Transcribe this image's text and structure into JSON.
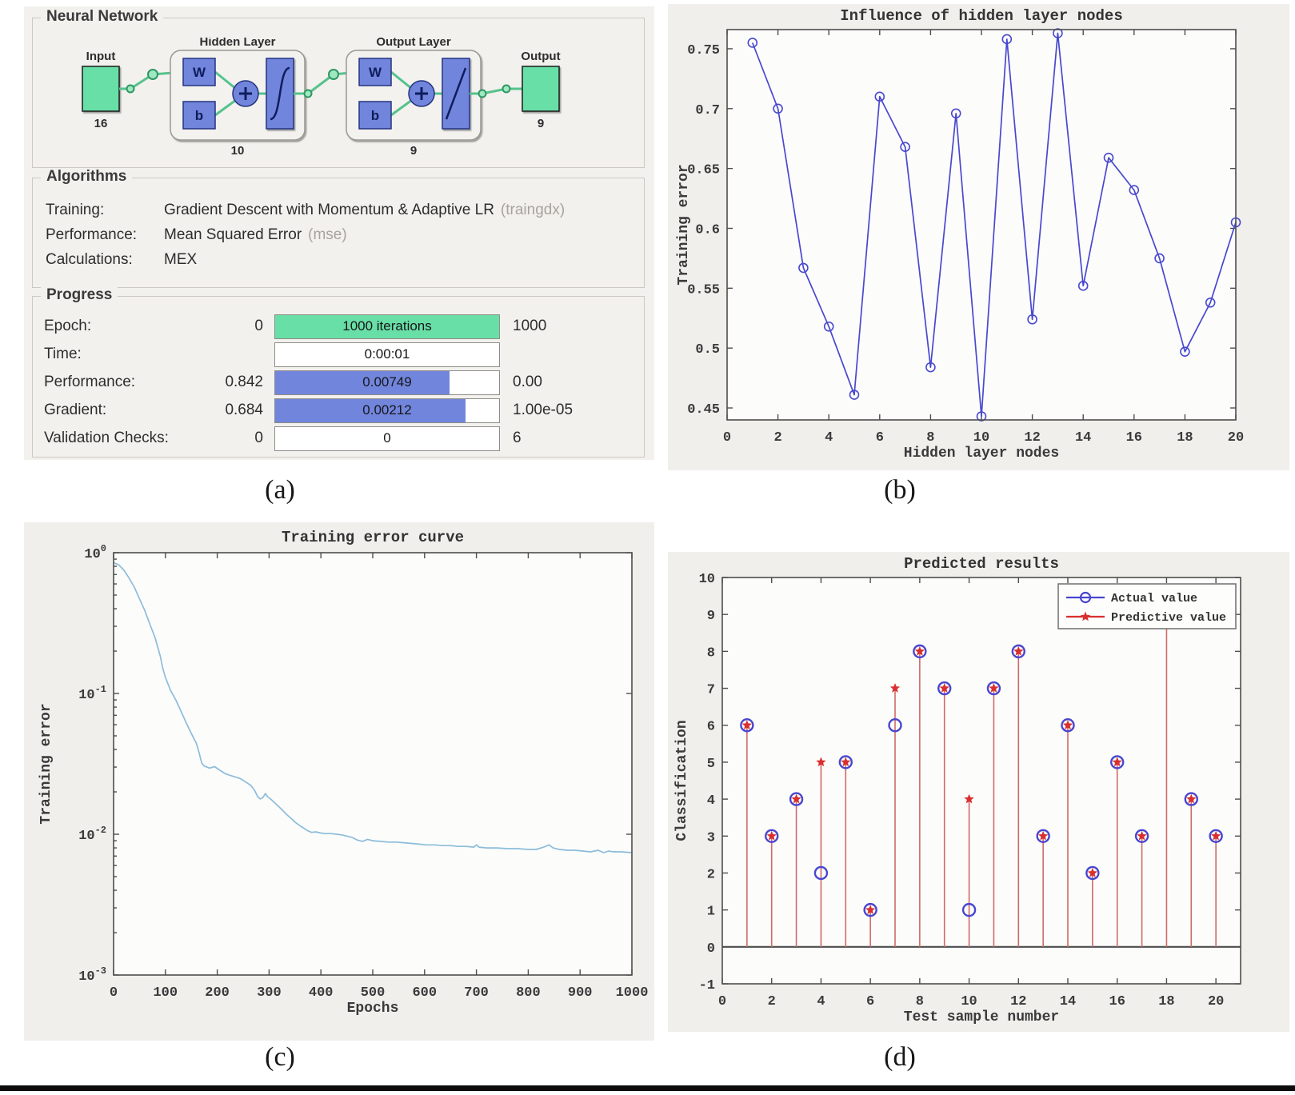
{
  "figure": {
    "captions": {
      "a": "(a)",
      "b": "(b)",
      "c": "(c)",
      "d": "(d)"
    }
  },
  "panel_a": {
    "neural_network": {
      "title": "Neural Network",
      "input_label": "Input",
      "input_size": "16",
      "hidden_layer_label": "Hidden Layer",
      "hidden_nodes": "10",
      "output_layer_label": "Output Layer",
      "output_nodes": "9",
      "weight_label": "W",
      "bias_label": "b",
      "output_label": "Output",
      "output_size": "9"
    },
    "algorithms": {
      "title": "Algorithms",
      "rows": [
        {
          "label": "Training:",
          "value": "Gradient Descent with Momentum & Adaptive LR",
          "code": "(traingdx)"
        },
        {
          "label": "Performance:",
          "value": "Mean Squared Error",
          "code": "(mse)"
        },
        {
          "label": "Calculations:",
          "value": "MEX",
          "code": ""
        }
      ]
    },
    "progress": {
      "title": "Progress",
      "rows": [
        {
          "label": "Epoch:",
          "left": "0",
          "bar_text": "1000 iterations",
          "bar_fill": 1.0,
          "bar_color": "#68dfa6",
          "right": "1000"
        },
        {
          "label": "Time:",
          "left": "",
          "bar_text": "0:00:01",
          "bar_fill": 0,
          "bar_color": "#ffffff",
          "right": ""
        },
        {
          "label": "Performance:",
          "left": "0.842",
          "bar_text": "0.00749",
          "bar_fill": 0.78,
          "bar_color": "#7185dc",
          "right": "0.00"
        },
        {
          "label": "Gradient:",
          "left": "0.684",
          "bar_text": "0.00212",
          "bar_fill": 0.85,
          "bar_color": "#7185dc",
          "right": "1.00e-05"
        },
        {
          "label": "Validation Checks:",
          "left": "0",
          "bar_text": "0",
          "bar_fill": 0,
          "bar_color": "#ffffff",
          "right": "6"
        }
      ]
    }
  },
  "chart_data": [
    {
      "id": "b",
      "type": "line",
      "title": "Influence of hidden layer nodes",
      "xlabel": "Hidden layer nodes",
      "ylabel": "Training error",
      "xlim": [
        0,
        20
      ],
      "ylim": [
        0.44,
        0.766
      ],
      "grid": false,
      "line_color": "#4848d0",
      "marker": "o",
      "xticks": [
        0,
        2,
        4,
        6,
        8,
        10,
        12,
        14,
        16,
        18,
        20
      ],
      "yticks": [
        {
          "v": 0.45,
          "label": "0.45"
        },
        {
          "v": 0.5,
          "label": "0.5"
        },
        {
          "v": 0.55,
          "label": "0.55"
        },
        {
          "v": 0.6,
          "label": "0.6"
        },
        {
          "v": 0.65,
          "label": "0.65"
        },
        {
          "v": 0.7,
          "label": "0.7"
        },
        {
          "v": 0.75,
          "label": "0.75"
        }
      ],
      "x": [
        1,
        2,
        3,
        4,
        5,
        6,
        7,
        8,
        9,
        10,
        11,
        12,
        13,
        14,
        15,
        16,
        17,
        18,
        19,
        20
      ],
      "y": [
        0.755,
        0.7,
        0.567,
        0.518,
        0.461,
        0.71,
        0.668,
        0.484,
        0.696,
        0.443,
        0.758,
        0.524,
        0.763,
        0.552,
        0.659,
        0.632,
        0.575,
        0.497,
        0.538,
        0.605
      ]
    },
    {
      "id": "c",
      "type": "line",
      "title": "Training error curve",
      "xlabel": "Epochs",
      "ylabel": "Training error",
      "yscale": "log",
      "xlim": [
        0,
        1000
      ],
      "ylim": [
        0.001,
        1
      ],
      "grid": false,
      "line_color": "#8cbcdb",
      "marker": "",
      "xticks": [
        0,
        100,
        200,
        300,
        400,
        500,
        600,
        700,
        800,
        900,
        1000
      ],
      "yticks": [
        {
          "v": 1,
          "base": "10",
          "exp": "0"
        },
        {
          "v": 0.1,
          "base": "10",
          "exp": "-1"
        },
        {
          "v": 0.01,
          "base": "10",
          "exp": "-2"
        },
        {
          "v": 0.001,
          "base": "10",
          "exp": "-3"
        }
      ],
      "x": [
        0,
        10,
        20,
        30,
        40,
        50,
        60,
        70,
        80,
        90,
        95,
        100,
        110,
        120,
        130,
        140,
        150,
        160,
        165,
        170,
        175,
        185,
        195,
        205,
        215,
        225,
        235,
        245,
        255,
        265,
        272,
        278,
        283,
        288,
        293,
        297,
        303,
        310,
        318,
        326,
        334,
        342,
        350,
        358,
        366,
        374,
        382,
        390,
        400,
        410,
        420,
        430,
        440,
        450,
        460,
        470,
        480,
        490,
        500,
        515,
        530,
        545,
        560,
        575,
        590,
        605,
        620,
        635,
        650,
        665,
        680,
        695,
        700,
        705,
        720,
        740,
        760,
        780,
        800,
        815,
        830,
        840,
        848,
        860,
        875,
        890,
        905,
        920,
        935,
        945,
        955,
        965,
        980,
        1000
      ],
      "y": [
        0.85,
        0.82,
        0.75,
        0.66,
        0.57,
        0.47,
        0.39,
        0.31,
        0.25,
        0.185,
        0.15,
        0.13,
        0.105,
        0.09,
        0.075,
        0.062,
        0.052,
        0.044,
        0.038,
        0.032,
        0.0305,
        0.0295,
        0.0302,
        0.0285,
        0.027,
        0.0262,
        0.0255,
        0.0248,
        0.0235,
        0.0222,
        0.0205,
        0.0185,
        0.0178,
        0.0182,
        0.0195,
        0.0185,
        0.0178,
        0.0168,
        0.0158,
        0.0148,
        0.0138,
        0.013,
        0.0122,
        0.0116,
        0.0111,
        0.0106,
        0.0103,
        0.0104,
        0.0102,
        0.0101,
        0.0101,
        0.01,
        0.0099,
        0.0097,
        0.0095,
        0.0091,
        0.0089,
        0.0092,
        0.009,
        0.0089,
        0.0088,
        0.0088,
        0.0087,
        0.0086,
        0.0085,
        0.0084,
        0.0084,
        0.0083,
        0.0083,
        0.0082,
        0.0082,
        0.0081,
        0.0084,
        0.0081,
        0.008,
        0.008,
        0.0079,
        0.0079,
        0.0078,
        0.0078,
        0.0081,
        0.0084,
        0.008,
        0.0078,
        0.0077,
        0.0077,
        0.0076,
        0.0075,
        0.0077,
        0.0074,
        0.0076,
        0.0075,
        0.0075,
        0.0074
      ]
    },
    {
      "id": "d",
      "type": "stem",
      "title": "Predicted results",
      "xlabel": "Test sample number",
      "ylabel": "Classification",
      "xlim": [
        0,
        21
      ],
      "ylim": [
        -1,
        10
      ],
      "grid": false,
      "stem_color": "#d06a68",
      "baseline_color": "#4d4d4d",
      "legend_position": "upper right",
      "xticks": [
        0,
        2,
        4,
        6,
        8,
        10,
        12,
        14,
        16,
        18,
        20
      ],
      "yticks": [
        {
          "v": -1,
          "label": "-1"
        },
        {
          "v": 0,
          "label": "0"
        },
        {
          "v": 1,
          "label": "1"
        },
        {
          "v": 2,
          "label": "2"
        },
        {
          "v": 3,
          "label": "3"
        },
        {
          "v": 4,
          "label": "4"
        },
        {
          "v": 5,
          "label": "5"
        },
        {
          "v": 6,
          "label": "6"
        },
        {
          "v": 7,
          "label": "7"
        },
        {
          "v": 8,
          "label": "8"
        },
        {
          "v": 9,
          "label": "9"
        },
        {
          "v": 10,
          "label": "10"
        }
      ],
      "x": [
        1,
        2,
        3,
        4,
        5,
        6,
        7,
        8,
        9,
        10,
        11,
        12,
        13,
        14,
        15,
        16,
        17,
        18,
        19,
        20
      ],
      "series": [
        {
          "name": "Actual value",
          "marker": "circle",
          "color": "#4946cf",
          "values": [
            6,
            3,
            4,
            2,
            5,
            1,
            6,
            8,
            7,
            1,
            7,
            8,
            3,
            6,
            2,
            5,
            3,
            9,
            4,
            3
          ]
        },
        {
          "name": "Predictive value",
          "marker": "star",
          "color": "#d92f2f",
          "values": [
            6,
            3,
            4,
            5,
            5,
            1,
            7,
            8,
            7,
            4,
            7,
            8,
            3,
            6,
            2,
            5,
            3,
            9,
            4,
            3
          ]
        }
      ],
      "note": "markers at x=18 sit behind the legend box"
    }
  ]
}
